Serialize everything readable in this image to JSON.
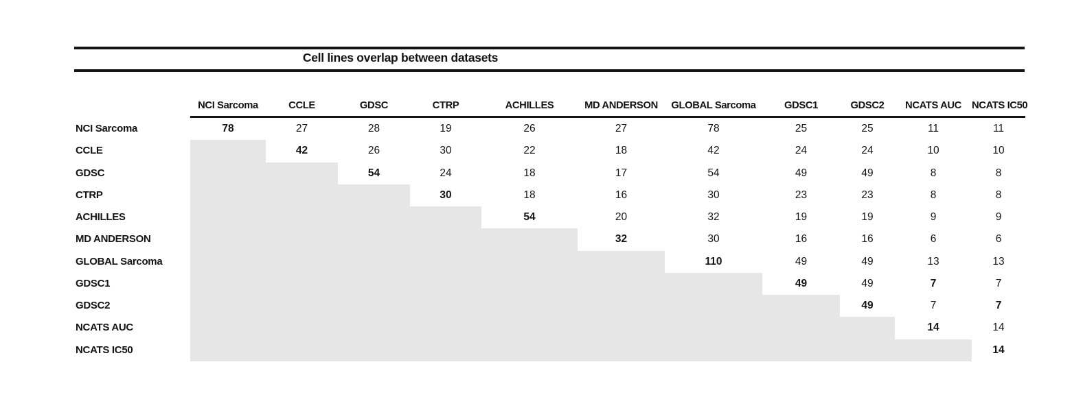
{
  "title": "Cell lines overlap between datasets",
  "chart_data": {
    "type": "table",
    "title": "Cell lines overlap between datasets",
    "columns": [
      "NCI Sarcoma",
      "CCLE",
      "GDSC",
      "CTRP",
      "ACHILLES",
      "MD ANDERSON",
      "GLOBAL Sarcoma",
      "GDSC1",
      "GDSC2",
      "NCATS AUC",
      "NCATS IC50"
    ],
    "row_labels": [
      "NCI Sarcoma",
      "CCLE",
      "GDSC",
      "CTRP",
      "ACHILLES",
      "MD ANDERSON",
      "GLOBAL Sarcoma",
      "GDSC1",
      "GDSC2",
      "NCATS AUC",
      "NCATS IC50"
    ],
    "matrix": [
      [
        78,
        27,
        28,
        19,
        26,
        27,
        78,
        25,
        25,
        11,
        11
      ],
      [
        null,
        42,
        26,
        30,
        22,
        18,
        42,
        24,
        24,
        10,
        10
      ],
      [
        null,
        null,
        54,
        24,
        18,
        17,
        54,
        49,
        49,
        8,
        8
      ],
      [
        null,
        null,
        null,
        30,
        18,
        16,
        30,
        23,
        23,
        8,
        8
      ],
      [
        null,
        null,
        null,
        null,
        54,
        20,
        32,
        19,
        19,
        9,
        9
      ],
      [
        null,
        null,
        null,
        null,
        null,
        32,
        30,
        16,
        16,
        6,
        6
      ],
      [
        null,
        null,
        null,
        null,
        null,
        null,
        110,
        49,
        49,
        13,
        13
      ],
      [
        null,
        null,
        null,
        null,
        null,
        null,
        null,
        49,
        49,
        7,
        7
      ],
      [
        null,
        null,
        null,
        null,
        null,
        null,
        null,
        null,
        49,
        7,
        7
      ],
      [
        null,
        null,
        null,
        null,
        null,
        null,
        null,
        null,
        null,
        14,
        14
      ],
      [
        null,
        null,
        null,
        null,
        null,
        null,
        null,
        null,
        null,
        null,
        14
      ]
    ],
    "bold_cells": [
      [
        0,
        0
      ],
      [
        1,
        1
      ],
      [
        2,
        2
      ],
      [
        3,
        3
      ],
      [
        4,
        4
      ],
      [
        5,
        5
      ],
      [
        6,
        6
      ],
      [
        7,
        7
      ],
      [
        7,
        9
      ],
      [
        8,
        8
      ],
      [
        8,
        10
      ],
      [
        9,
        9
      ],
      [
        10,
        10
      ]
    ],
    "shaded_lower_triangle": true,
    "layout": "lower triangle shaded gray, no gridlines, header underline over data columns only"
  },
  "colors": {
    "shaded_cell": "#e6e6e6",
    "rule": "#141414",
    "text": "#141414",
    "background": "#ffffff"
  }
}
